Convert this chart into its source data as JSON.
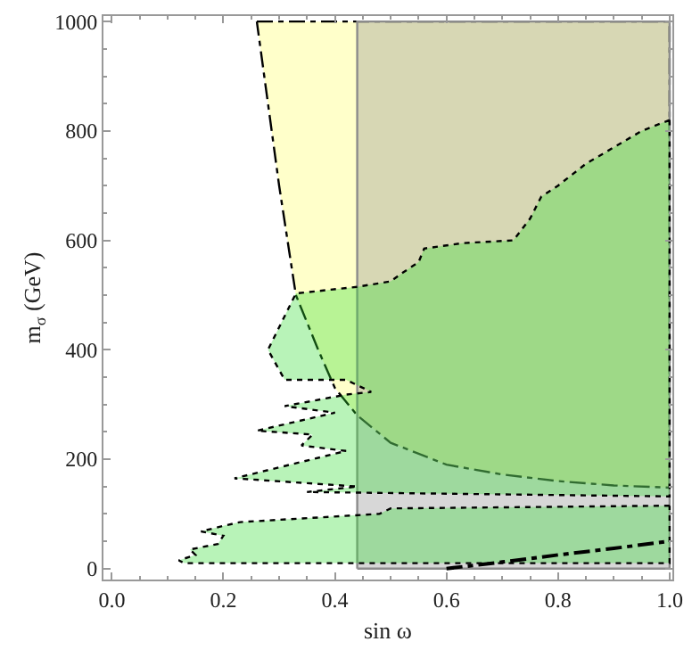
{
  "chart_data": {
    "type": "area",
    "xlabel": "sin ω",
    "ylabel": "m$_{σ}$ (GeV)",
    "xlim": [
      -0.015,
      1.005
    ],
    "ylim": [
      -20,
      1010
    ],
    "xticks": [
      {
        "value": 0,
        "label": "0.0"
      },
      0.2,
      0.4,
      0.6,
      0.8,
      {
        "value": 1,
        "label": "1.0"
      }
    ],
    "yticks": [
      0,
      200,
      400,
      600,
      800,
      1000
    ],
    "series": [
      {
        "color": "#ffff66",
        "line_style": "dashed",
        "x": [
          0.26,
          1.0,
          1.0,
          0.9,
          0.8,
          0.7,
          0.6,
          0.5,
          0.44,
          0.4,
          0.37,
          0.33,
          0.3,
          0.26
        ],
        "values": [
          1000,
          1000,
          148,
          152,
          160,
          172,
          190,
          230,
          280,
          330,
          400,
          500,
          700,
          1000
        ]
      },
      {
        "color": "#8c8c8c",
        "line_style": "solid",
        "x": [
          0.44,
          1.0,
          1.0,
          0.44,
          0.44
        ],
        "values": [
          0,
          0,
          1000,
          1000,
          0
        ]
      },
      {
        "color": "#33dd33",
        "line_style": "dotted",
        "x": [
          1.0,
          0.95,
          0.9,
          0.85,
          0.8,
          0.77,
          0.75,
          0.72,
          0.63,
          0.56,
          0.55,
          0.52,
          0.5,
          0.44,
          0.33,
          0.28,
          0.31,
          0.42,
          0.465,
          0.42,
          0.31,
          0.4,
          0.26,
          0.36,
          0.34,
          0.42,
          0.22,
          0.44,
          0.35,
          1.0,
          1.0
        ],
        "values": [
          820,
          800,
          770,
          740,
          700,
          680,
          640,
          600,
          595,
          585,
          560,
          540,
          525,
          515,
          503,
          400,
          345,
          345,
          323,
          318,
          297,
          285,
          252,
          245,
          225,
          215,
          165,
          150,
          140,
          132,
          820
        ]
      },
      {
        "color": "#33dd33",
        "line_style": "dotted",
        "x": [
          1.0,
          0.5,
          0.48,
          0.23,
          0.2,
          0.16,
          0.2,
          0.19,
          0.14,
          0.15,
          0.12,
          0.13,
          1.0,
          1.0
        ],
        "values": [
          115,
          110,
          100,
          85,
          78,
          68,
          60,
          45,
          35,
          25,
          15,
          10,
          10,
          115
        ]
      },
      {
        "type": "line",
        "color": "#000000",
        "line_style": "dashed",
        "x": [
          0.6,
          0.7,
          0.8,
          0.9,
          1.0
        ],
        "values": [
          0,
          12,
          25,
          37,
          50
        ]
      }
    ]
  }
}
